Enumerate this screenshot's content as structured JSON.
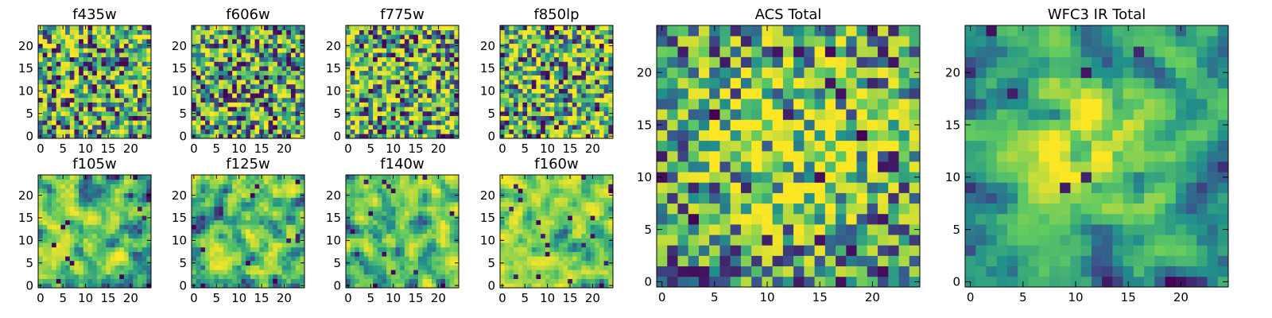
{
  "figure": {
    "background": "#ffffff",
    "colormap": "viridis",
    "colormap_stops": [
      "#440154",
      "#3b528b",
      "#21918c",
      "#5ec962",
      "#fde725"
    ]
  },
  "chart_data": [
    {
      "type": "heatmap",
      "title": "f435w",
      "grid_size": 25,
      "xlim": [
        -0.5,
        24.5
      ],
      "ylim": [
        -0.5,
        24.5
      ],
      "x_ticks": [
        0,
        5,
        10,
        15,
        20
      ],
      "y_ticks": [
        0,
        5,
        10,
        15,
        20
      ],
      "grid": false,
      "pattern": "uniform noise, sparse dark pixels",
      "seed": 11,
      "smooth": 0,
      "skew": 0.8,
      "dark_pixel_rate": 0.06
    },
    {
      "type": "heatmap",
      "title": "f606w",
      "grid_size": 25,
      "xlim": [
        -0.5,
        24.5
      ],
      "ylim": [
        -0.5,
        24.5
      ],
      "x_ticks": [
        0,
        5,
        10,
        15,
        20
      ],
      "y_ticks": [
        0,
        5,
        10,
        15,
        20
      ],
      "grid": false,
      "pattern": "uniform noise, bright",
      "seed": 23,
      "smooth": 0,
      "skew": 0.6,
      "dark_pixel_rate": 0.04
    },
    {
      "type": "heatmap",
      "title": "f775w",
      "grid_size": 25,
      "xlim": [
        -0.5,
        24.5
      ],
      "ylim": [
        -0.5,
        24.5
      ],
      "x_ticks": [
        0,
        5,
        10,
        15,
        20
      ],
      "y_ticks": [
        0,
        5,
        10,
        15,
        20
      ],
      "grid": false,
      "pattern": "uniform noise",
      "seed": 37,
      "smooth": 0,
      "skew": 0.85,
      "dark_pixel_rate": 0.04
    },
    {
      "type": "heatmap",
      "title": "f850lp",
      "grid_size": 25,
      "xlim": [
        -0.5,
        24.5
      ],
      "ylim": [
        -0.5,
        24.5
      ],
      "x_ticks": [
        0,
        5,
        10,
        15,
        20
      ],
      "y_ticks": [
        0,
        5,
        10,
        15,
        20
      ],
      "grid": false,
      "pattern": "uniform noise",
      "seed": 41,
      "smooth": 0,
      "skew": 0.9,
      "dark_pixel_rate": 0.04
    },
    {
      "type": "heatmap",
      "title": "f105w",
      "grid_size": 25,
      "xlim": [
        -0.5,
        24.5
      ],
      "ylim": [
        -0.5,
        24.5
      ],
      "x_ticks": [
        0,
        5,
        10,
        15,
        20
      ],
      "y_ticks": [
        0,
        5,
        10,
        15,
        20
      ],
      "grid": false,
      "pattern": "correlated noise",
      "seed": 53,
      "smooth": 1,
      "skew": 0.9,
      "dark_pixel_rate": 0.02
    },
    {
      "type": "heatmap",
      "title": "f125w",
      "grid_size": 25,
      "xlim": [
        -0.5,
        24.5
      ],
      "ylim": [
        -0.5,
        24.5
      ],
      "x_ticks": [
        0,
        5,
        10,
        15,
        20
      ],
      "y_ticks": [
        0,
        5,
        10,
        15,
        20
      ],
      "grid": false,
      "pattern": "correlated noise",
      "seed": 67,
      "smooth": 1,
      "skew": 0.75,
      "dark_pixel_rate": 0.02
    },
    {
      "type": "heatmap",
      "title": "f140w",
      "grid_size": 25,
      "xlim": [
        -0.5,
        24.5
      ],
      "ylim": [
        -0.5,
        24.5
      ],
      "x_ticks": [
        0,
        5,
        10,
        15,
        20
      ],
      "y_ticks": [
        0,
        5,
        10,
        15,
        20
      ],
      "grid": false,
      "pattern": "correlated noise",
      "seed": 79,
      "smooth": 1,
      "skew": 0.8,
      "dark_pixel_rate": 0.02
    },
    {
      "type": "heatmap",
      "title": "f160w",
      "grid_size": 25,
      "xlim": [
        -0.5,
        24.5
      ],
      "ylim": [
        -0.5,
        24.5
      ],
      "x_ticks": [
        0,
        5,
        10,
        15,
        20
      ],
      "y_ticks": [
        0,
        5,
        10,
        15,
        20
      ],
      "grid": false,
      "pattern": "correlated noise",
      "seed": 83,
      "smooth": 1,
      "skew": 0.95,
      "dark_pixel_rate": 0.03
    },
    {
      "type": "heatmap",
      "title": "ACS Total",
      "grid_size": 25,
      "xlim": [
        -0.5,
        24.5
      ],
      "ylim": [
        -0.5,
        24.5
      ],
      "x_ticks": [
        0,
        5,
        10,
        15,
        20
      ],
      "y_ticks": [
        0,
        5,
        10,
        15,
        20
      ],
      "grid": false,
      "pattern": "noise, brighter centre",
      "seed": 97,
      "smooth": 0,
      "skew": 0.7,
      "dark_pixel_rate": 0.035,
      "bright_center": [
        13,
        14
      ],
      "center_strength": 0.25,
      "center_radius": 8
    },
    {
      "type": "heatmap",
      "title": "WFC3 IR Total",
      "grid_size": 25,
      "xlim": [
        -0.5,
        24.5
      ],
      "ylim": [
        -0.5,
        24.5
      ],
      "x_ticks": [
        0,
        5,
        10,
        15,
        20
      ],
      "y_ticks": [
        0,
        5,
        10,
        15,
        20
      ],
      "grid": false,
      "pattern": "smooth, bright blob at centre",
      "seed": 101,
      "smooth": 1,
      "skew": 1.0,
      "dark_pixel_rate": 0.015,
      "bright_center": [
        12,
        13
      ],
      "center_strength": 0.45,
      "center_radius": 5
    }
  ]
}
